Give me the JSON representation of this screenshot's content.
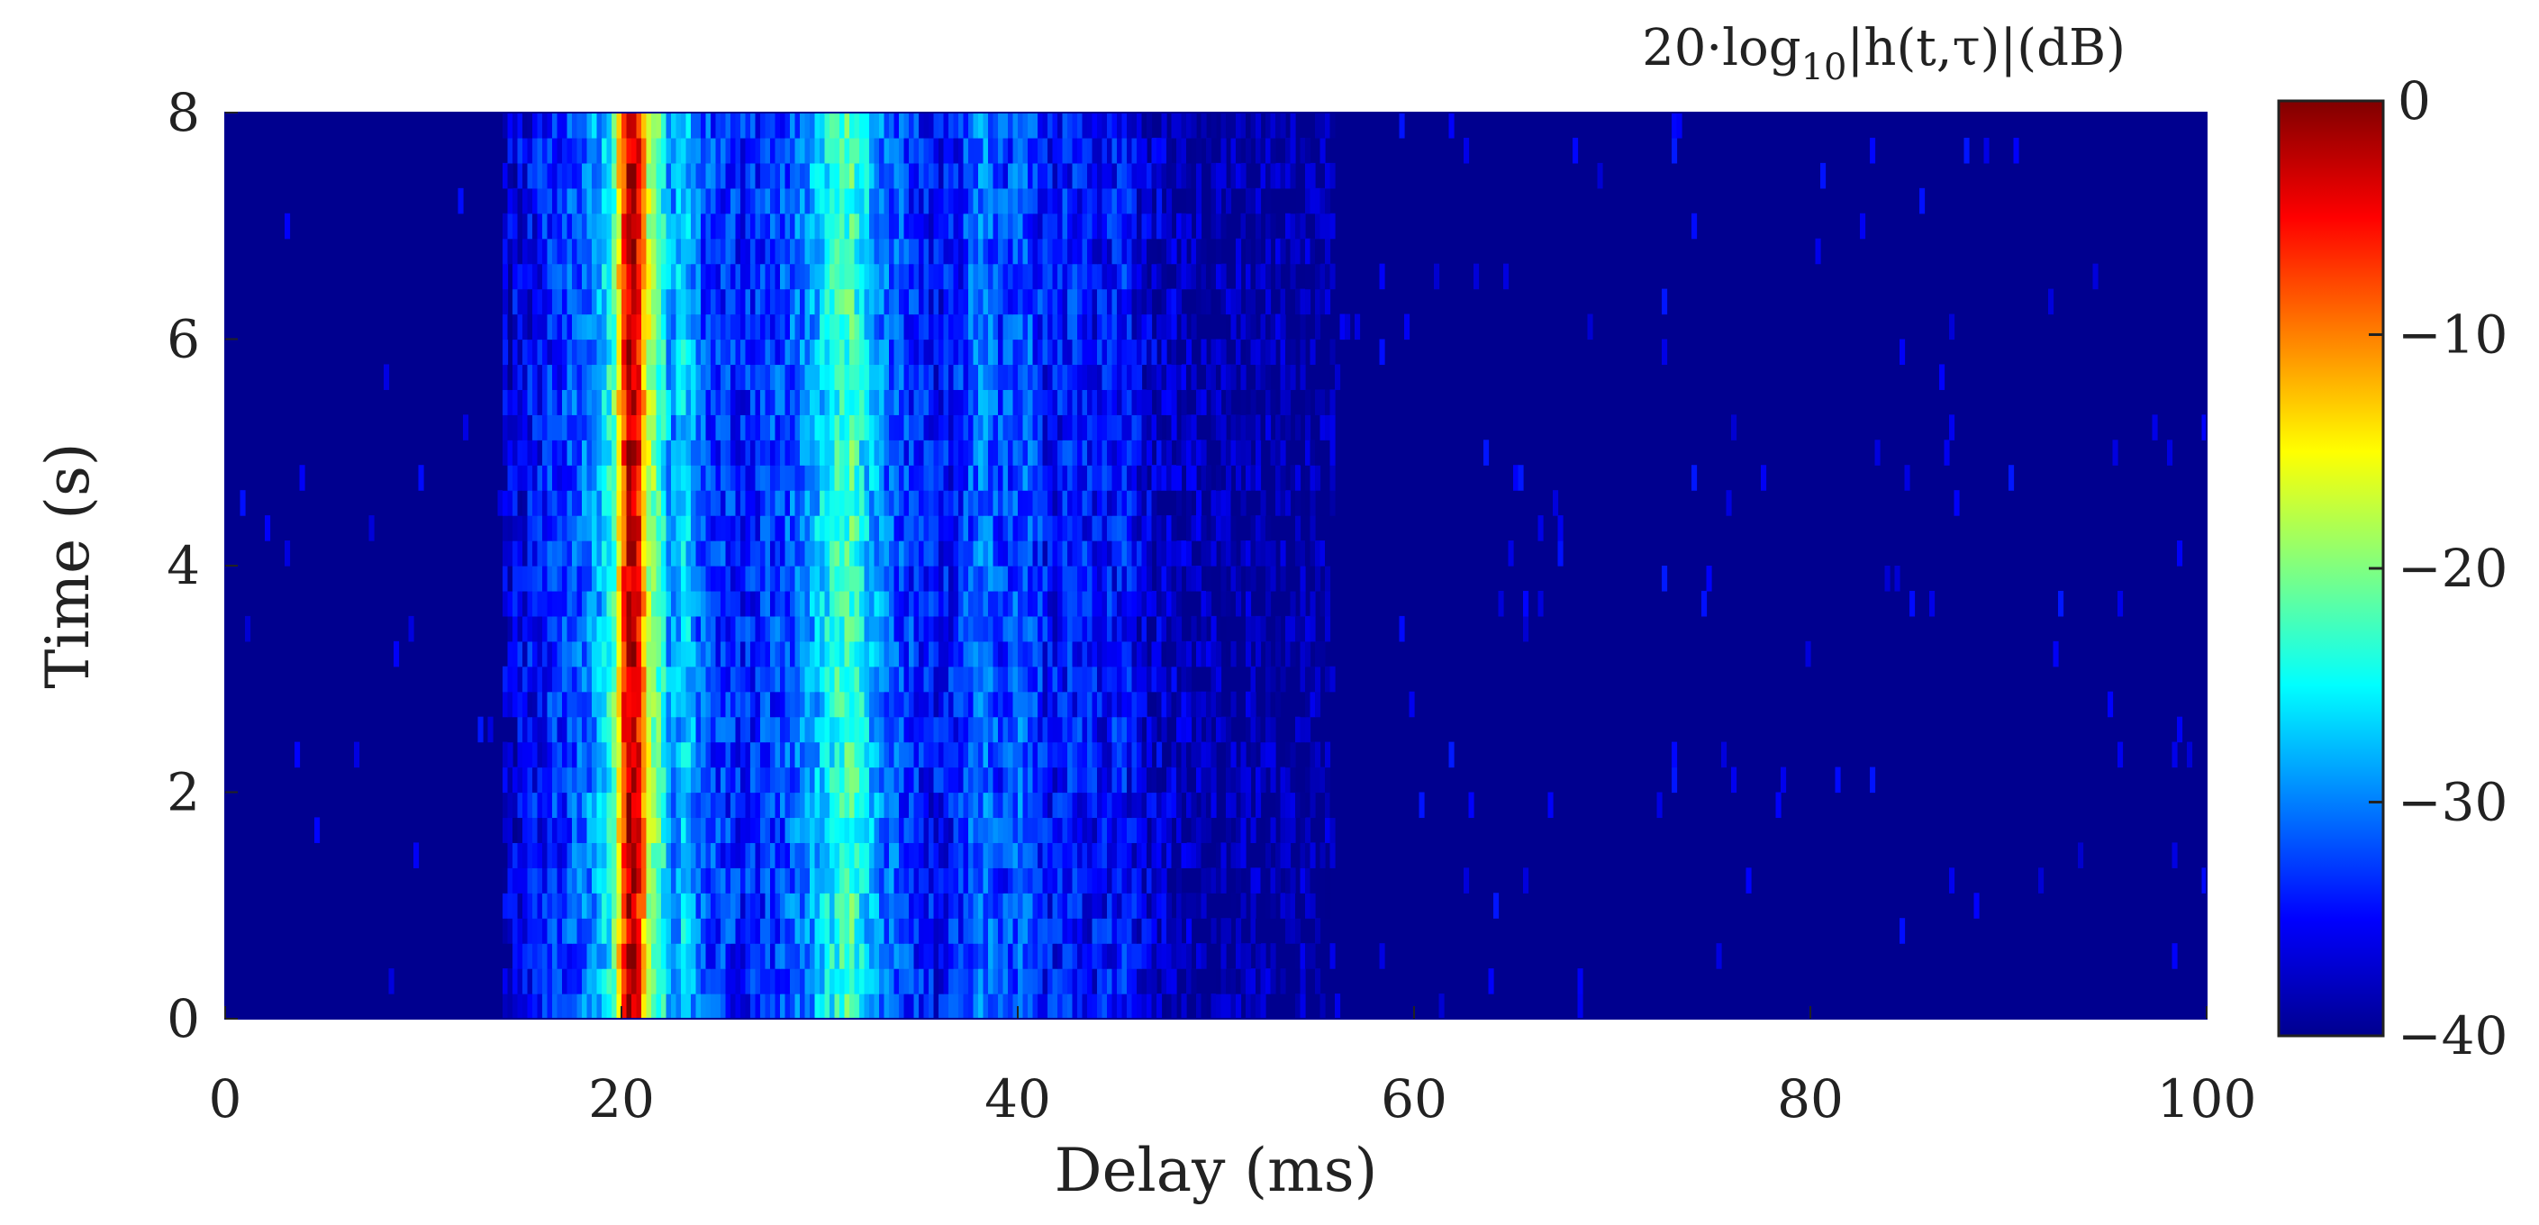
{
  "chart_data": {
    "type": "heatmap",
    "title": "",
    "xlabel": "Delay (ms)",
    "ylabel": "Time (s)",
    "xlim": [
      0,
      100
    ],
    "ylim": [
      0,
      8
    ],
    "x_ticks": [
      0,
      20,
      40,
      60,
      80,
      100
    ],
    "y_ticks": [
      0,
      2,
      4,
      6,
      8
    ],
    "colormap": "jet",
    "colorbar": {
      "title": "20·log10|h(t,τ)|(dB)",
      "title_parts": {
        "prefix": "20·log",
        "subscript": "10",
        "suffix": "|h(t,τ)|(dB)"
      },
      "range": [
        -40,
        0
      ],
      "ticks": [
        0,
        -10,
        -20,
        -30,
        -40
      ]
    },
    "value_units": "dB",
    "background_level_db": -40,
    "delay_profile": [
      {
        "delay_ms": 14.0,
        "level_db": -37
      },
      {
        "delay_ms": 15.5,
        "level_db": -35
      },
      {
        "delay_ms": 17.0,
        "level_db": -33
      },
      {
        "delay_ms": 18.0,
        "level_db": -31
      },
      {
        "delay_ms": 19.0,
        "level_db": -28
      },
      {
        "delay_ms": 19.6,
        "level_db": -22
      },
      {
        "delay_ms": 20.1,
        "level_db": -8
      },
      {
        "delay_ms": 20.5,
        "level_db": 0
      },
      {
        "delay_ms": 20.9,
        "level_db": -6
      },
      {
        "delay_ms": 21.4,
        "level_db": -18
      },
      {
        "delay_ms": 21.9,
        "level_db": -22
      },
      {
        "delay_ms": 22.5,
        "level_db": -30
      },
      {
        "delay_ms": 23.2,
        "level_db": -26
      },
      {
        "delay_ms": 24.0,
        "level_db": -32
      },
      {
        "delay_ms": 25.0,
        "level_db": -33
      },
      {
        "delay_ms": 26.2,
        "level_db": -34
      },
      {
        "delay_ms": 27.3,
        "level_db": -33
      },
      {
        "delay_ms": 28.3,
        "level_db": -32
      },
      {
        "delay_ms": 29.3,
        "level_db": -30
      },
      {
        "delay_ms": 30.0,
        "level_db": -27
      },
      {
        "delay_ms": 30.8,
        "level_db": -24
      },
      {
        "delay_ms": 31.6,
        "level_db": -22
      },
      {
        "delay_ms": 32.4,
        "level_db": -27
      },
      {
        "delay_ms": 33.4,
        "level_db": -31
      },
      {
        "delay_ms": 34.5,
        "level_db": -33
      },
      {
        "delay_ms": 35.8,
        "level_db": -35
      },
      {
        "delay_ms": 37.0,
        "level_db": -34
      },
      {
        "delay_ms": 38.2,
        "level_db": -30
      },
      {
        "delay_ms": 39.2,
        "level_db": -33
      },
      {
        "delay_ms": 40.3,
        "level_db": -31
      },
      {
        "delay_ms": 41.5,
        "level_db": -35
      },
      {
        "delay_ms": 42.8,
        "level_db": -34
      },
      {
        "delay_ms": 44.0,
        "level_db": -35
      },
      {
        "delay_ms": 45.3,
        "level_db": -34
      },
      {
        "delay_ms": 46.5,
        "level_db": -37
      },
      {
        "delay_ms": 48.0,
        "level_db": -38
      },
      {
        "delay_ms": 50.0,
        "level_db": -39
      },
      {
        "delay_ms": 56.0,
        "level_db": -39
      }
    ]
  }
}
